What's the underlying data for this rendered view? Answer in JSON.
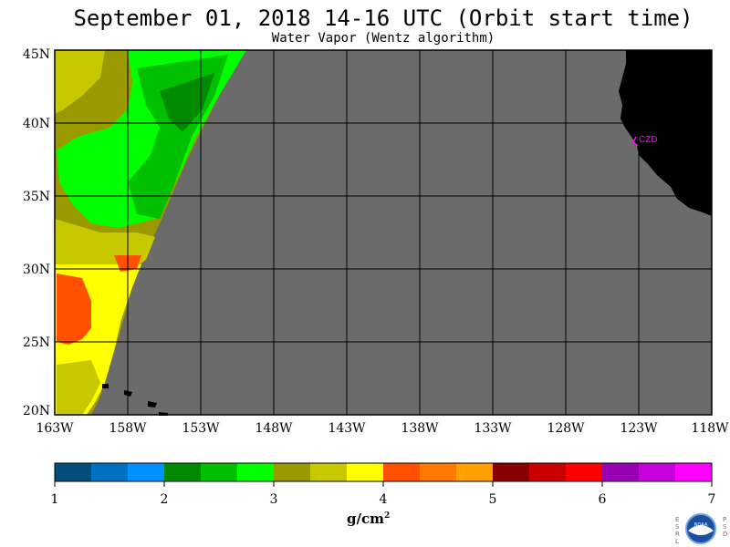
{
  "title": "September 01, 2018  14-16 UTC  (Orbit start time)",
  "subtitle": "Water Vapor (Wentz algorithm)",
  "lat_labels": [
    "45N",
    "40N",
    "35N",
    "30N",
    "25N",
    "20N"
  ],
  "lon_labels": [
    "163W",
    "158W",
    "153W",
    "148W",
    "143W",
    "138W",
    "133W",
    "128W",
    "123W",
    "118W"
  ],
  "station_label": "CZD",
  "colorbar": {
    "colors": [
      "#004e7a",
      "#0070c0",
      "#0090ff",
      "#008a00",
      "#00c000",
      "#00ff00",
      "#9a9a00",
      "#c8c800",
      "#ffff00",
      "#ff5000",
      "#ff7a00",
      "#ffa000",
      "#8a0000",
      "#c80000",
      "#ff0000",
      "#9a00b4",
      "#c800dc",
      "#ff00ff"
    ],
    "tick_labels": [
      "1",
      "2",
      "3",
      "4",
      "5",
      "6",
      "7"
    ]
  },
  "units_label": "g/cm",
  "units_exp": "2",
  "logo": {
    "left_text": "ESRL",
    "right_text": "PSD",
    "center_text": "NOAA"
  },
  "colors": {
    "ocean": "#6b6b6b",
    "land": "#000000",
    "station": "#ff00ff"
  }
}
